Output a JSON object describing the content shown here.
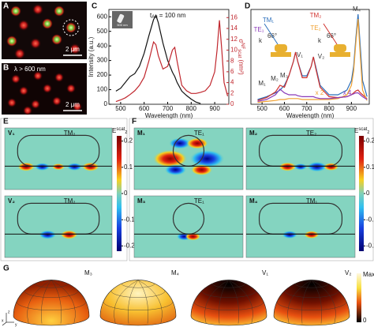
{
  "panels": {
    "a": {
      "label": "A",
      "scale_bar": "2 μm"
    },
    "b": {
      "label": "B",
      "filter": "λ > 600 nm",
      "scale_bar": "2 μm"
    },
    "e": {
      "label": "E",
      "colorbar_title": {
        "symbol": "E",
        "sub": "z",
        "sup": "scat"
      },
      "clim": [
        -0.22,
        0.22
      ],
      "colorbar_ticks": [
        0.2,
        0.1,
        0,
        -0.1,
        -0.2
      ],
      "maps": [
        {
          "mode": "V₁",
          "kind": "TM₂"
        },
        {
          "mode": "V₂",
          "kind": "TM₂"
        }
      ]
    },
    "f": {
      "label": "F",
      "colorbar_title": {
        "symbol": "E",
        "sub": "z",
        "sup": "scat"
      },
      "clim": [
        -0.22,
        0.22
      ],
      "colorbar_ticks": [
        0.2,
        0.1,
        0,
        -0.1,
        -0.2
      ],
      "maps": [
        {
          "mode": "M₁",
          "kind": "TE₁"
        },
        {
          "mode": "M₂",
          "kind": "TE₂"
        },
        {
          "mode": "M₃",
          "kind": "TE₁"
        },
        {
          "mode": "M₄",
          "kind": "TM₁"
        }
      ]
    },
    "g": {
      "label": "G",
      "modes": [
        "M₃",
        "M₄",
        "V₁",
        "V₂"
      ],
      "colorbar": [
        "Max",
        "0"
      ],
      "axes": [
        "x",
        "y",
        "z"
      ]
    }
  },
  "chart_data": [
    {
      "type": "line",
      "label": "C",
      "annotation": {
        "symbol": "t",
        "sub": "Au",
        "text": " = 100 nm"
      },
      "inset_scale": "500 nm",
      "x_label": "Wavelength (nm)",
      "y_label": "Intensity (a.u.)",
      "y2_label": {
        "symbol": "σ",
        "sup": "NF",
        "sub": "scat",
        "unit": " (nm²)"
      },
      "x": [
        480,
        500,
        520,
        540,
        560,
        580,
        600,
        620,
        640,
        650,
        660,
        680,
        700,
        720,
        730,
        740,
        760,
        780,
        800,
        820,
        840,
        860,
        880,
        900,
        910,
        920,
        930,
        940,
        955
      ],
      "xlim": [
        450,
        960
      ],
      "xticks": [
        500,
        600,
        700,
        800,
        900
      ],
      "ylim": [
        0,
        650
      ],
      "yticks": [
        0,
        100,
        200,
        300,
        400,
        500,
        600
      ],
      "y2lim": [
        0,
        17.5
      ],
      "y2ticks": [
        0,
        2,
        4,
        6,
        8,
        10,
        12,
        14,
        16
      ],
      "series": [
        {
          "color": "#111111",
          "values": [
            90,
            110,
            150,
            190,
            210,
            260,
            350,
            470,
            580,
            610,
            560,
            420,
            300,
            220,
            190,
            150,
            90,
            60,
            35,
            15,
            5,
            null,
            null,
            null,
            null,
            null,
            null,
            null,
            null
          ]
        },
        {
          "color": "#c0262d",
          "axis": "y2",
          "values": [
            0.5,
            0.8,
            1.2,
            1.8,
            2.5,
            3.5,
            5,
            8,
            11.5,
            11,
            9,
            6.5,
            7,
            10,
            10.5,
            8,
            3.5,
            2.5,
            2,
            2,
            2.2,
            2.5,
            3.5,
            6,
            10,
            15.5,
            10,
            4,
            1.5
          ]
        }
      ]
    },
    {
      "type": "line",
      "label": "D",
      "x_label": "Wavelength (nm)",
      "annotations": [
        "M₁",
        "M₂",
        "M₃",
        "V₁",
        "V₂",
        "M₄",
        "x 2",
        "x 4",
        "TE₁",
        "TM₁",
        "TM₂",
        "TE₂",
        "66°",
        "66°",
        "k",
        "k"
      ],
      "x": [
        480,
        520,
        560,
        580,
        600,
        620,
        640,
        650,
        660,
        680,
        700,
        720,
        730,
        740,
        760,
        800,
        840,
        880,
        900,
        910,
        920,
        930,
        940,
        950,
        970
      ],
      "xlim": [
        450,
        980
      ],
      "xticks": [
        500,
        600,
        700,
        800,
        900
      ],
      "ylim": [
        0,
        1
      ],
      "series": [
        {
          "color": "#2a6ebb",
          "values": [
            0.05,
            0.08,
            0.12,
            0.15,
            0.2,
            0.3,
            0.45,
            0.55,
            0.45,
            0.3,
            0.3,
            0.4,
            0.5,
            0.4,
            0.2,
            0.1,
            0.1,
            0.15,
            0.25,
            0.4,
            0.7,
            0.95,
            0.6,
            0.25,
            0.08
          ]
        },
        {
          "color": "#d0312d",
          "values": [
            0.04,
            0.07,
            0.13,
            0.2,
            0.18,
            0.3,
            0.45,
            0.55,
            0.45,
            0.28,
            0.28,
            0.4,
            0.5,
            0.38,
            0.18,
            0.08,
            0.07,
            0.08,
            0.1,
            0.12,
            0.14,
            0.15,
            0.12,
            0.1,
            0.06
          ]
        },
        {
          "color": "#f0a030",
          "values": [
            0.02,
            0.03,
            0.04,
            0.05,
            0.05,
            0.06,
            0.06,
            0.06,
            0.06,
            0.05,
            0.05,
            0.05,
            0.05,
            0.05,
            0.05,
            0.05,
            0.06,
            0.1,
            0.2,
            0.35,
            0.65,
            0.9,
            0.5,
            0.15,
            0.04
          ]
        },
        {
          "color": "#8a3ab9",
          "values": [
            0.03,
            0.05,
            0.1,
            0.16,
            0.12,
            0.1,
            0.1,
            0.1,
            0.09,
            0.08,
            0.08,
            0.08,
            0.08,
            0.07,
            0.06,
            0.06,
            0.07,
            0.08,
            0.1,
            0.11,
            0.12,
            0.12,
            0.1,
            0.08,
            0.05
          ]
        }
      ]
    }
  ]
}
